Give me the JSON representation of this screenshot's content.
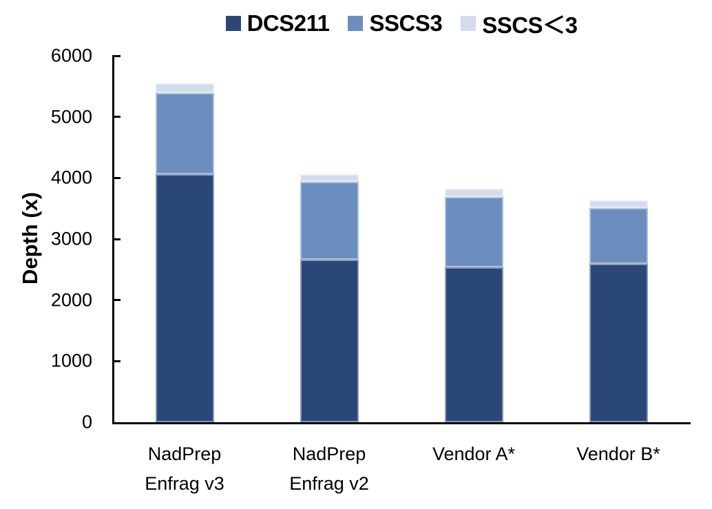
{
  "chart_data": {
    "type": "bar",
    "subtype": "stacked",
    "title": "",
    "xlabel": "",
    "ylabel": "Depth (x)",
    "ylim": [
      0,
      6000
    ],
    "yticks": [
      0,
      1000,
      2000,
      3000,
      4000,
      5000,
      6000
    ],
    "grid": false,
    "legend_position": "top-center",
    "categories": [
      "NadPrep\nEnfrag v3",
      "NadPrep\nEnfrag v2",
      "Vendor A*",
      "Vendor B*"
    ],
    "series": [
      {
        "name": "DCS211",
        "color": "#2A4778",
        "values": [
          4060,
          2660,
          2535,
          2595
        ]
      },
      {
        "name": "SSCS3",
        "color": "#6C8EBF",
        "values": [
          1330,
          1275,
          1150,
          915
        ]
      },
      {
        "name": "SSCS＜3",
        "color": "#D3DCEA",
        "values": [
          160,
          125,
          135,
          125
        ]
      }
    ],
    "stack_totals": [
      5550,
      4060,
      3820,
      3635
    ]
  },
  "colors": {
    "axis": "#000000",
    "text": "#000000",
    "background": "#FFFFFF"
  }
}
